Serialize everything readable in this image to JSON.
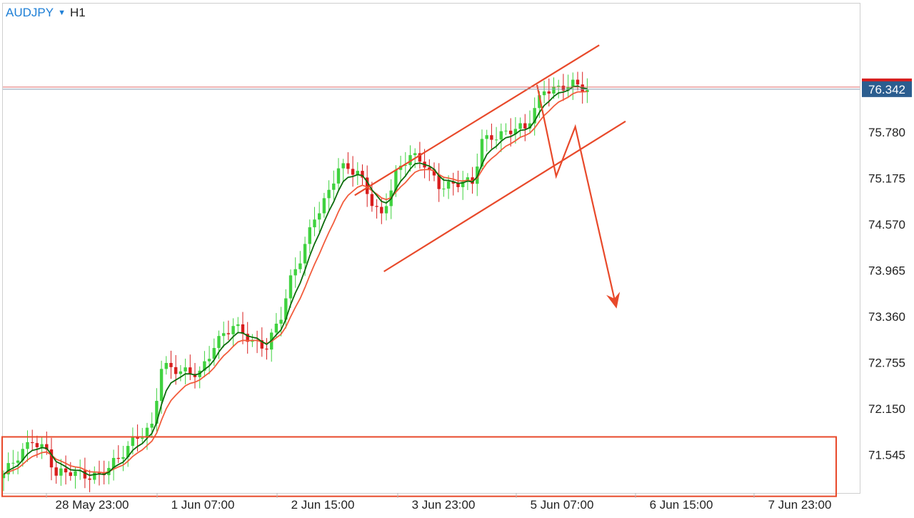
{
  "header": {
    "symbol": "AUDJPY",
    "caret_icon": "triangle-down-icon",
    "timeframe": "H1"
  },
  "colors": {
    "bull": "#3fd23f",
    "bear": "#d81e1e",
    "ema_fast": "#0c6b0c",
    "ema_slow": "#f25c3c",
    "annotation": "#e8492a",
    "badge": "#2b5d8f",
    "badge_hidden": "#d81e1e",
    "grid": "#dddddd"
  },
  "chart_data": {
    "type": "candlestick",
    "title": "",
    "xlabel": "",
    "ylabel": "",
    "grid": false,
    "ylim": [
      70.95,
      76.95
    ],
    "x_ticks": [
      "28 May 23:00",
      "1 Jun 07:00",
      "2 Jun 15:00",
      "3 Jun 23:00",
      "5 Jun 07:00",
      "6 Jun 15:00",
      "7 Jun 23:00"
    ],
    "y_ticks": [
      76.342,
      75.78,
      75.175,
      74.57,
      73.965,
      73.36,
      72.755,
      72.15,
      71.545
    ],
    "current_price": "76.342",
    "upper_price_line": 76.37,
    "key_closes": [
      {
        "x": "28 May 23:00",
        "close": 71.3
      },
      {
        "x": "1 Jun 07:00",
        "close": 72.6
      },
      {
        "x": "2 Jun 15:00",
        "close": 75.3
      },
      {
        "x": "3 Jun 23:00",
        "close": 75.2
      },
      {
        "x": "5 Jun 07:00",
        "close": 76.38
      }
    ],
    "series": [
      {
        "indicator": "moving-average-fast"
      },
      {
        "indicator": "moving-average-slow"
      }
    ],
    "annotations": {
      "channel_upper": [
        [
          73.4,
          74.95
        ],
        [
          124.5,
          76.92
        ]
      ],
      "channel_lower": [
        [
          79.5,
          73.95
        ],
        [
          130,
          75.92
        ]
      ],
      "forecast_path": [
        [
          111.5,
          76.4
        ],
        [
          115.5,
          75.2
        ],
        [
          119.5,
          75.85
        ],
        [
          128,
          73.5
        ]
      ],
      "support_zone": {
        "y_top": 71.78,
        "y_bottom": 71.0
      }
    }
  }
}
